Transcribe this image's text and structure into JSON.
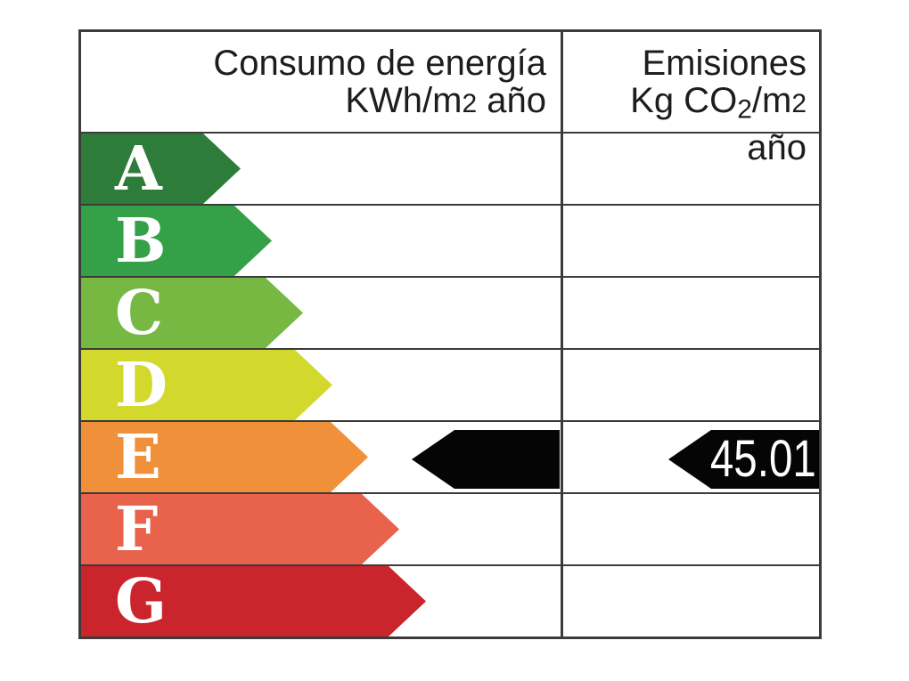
{
  "header": {
    "consumo": {
      "title": "Consumo de energía",
      "unit_pre": "KWh/m",
      "unit_exp": "2",
      "unit_post": " año"
    },
    "emisiones": {
      "title": "Emisiones",
      "unit_pre": "Kg CO",
      "unit_sub": "2",
      "unit_mid": "/m",
      "unit_exp": "2",
      "unit_post": " año"
    }
  },
  "chart_data": {
    "type": "bar",
    "title": "",
    "columns": [
      {
        "title": "Consumo de energía",
        "unit": "KWh/m2 año"
      },
      {
        "title": "Emisiones",
        "unit": "Kg CO2/m2 año"
      }
    ],
    "ratings": [
      {
        "letter": "A",
        "color": "#2d7c3a"
      },
      {
        "letter": "B",
        "color": "#34a048"
      },
      {
        "letter": "C",
        "color": "#76b842"
      },
      {
        "letter": "D",
        "color": "#d3d82d"
      },
      {
        "letter": "E",
        "color": "#f0903b"
      },
      {
        "letter": "F",
        "color": "#e9634c"
      },
      {
        "letter": "G",
        "color": "#ca242c"
      }
    ],
    "markers": {
      "consumo": {
        "rating": "E",
        "label": ""
      },
      "emisiones": {
        "rating": "E",
        "label": "45.01"
      }
    },
    "marker_color": "#050505",
    "border_color": "#3b3b3b",
    "legend_position": "none",
    "grid": true
  }
}
